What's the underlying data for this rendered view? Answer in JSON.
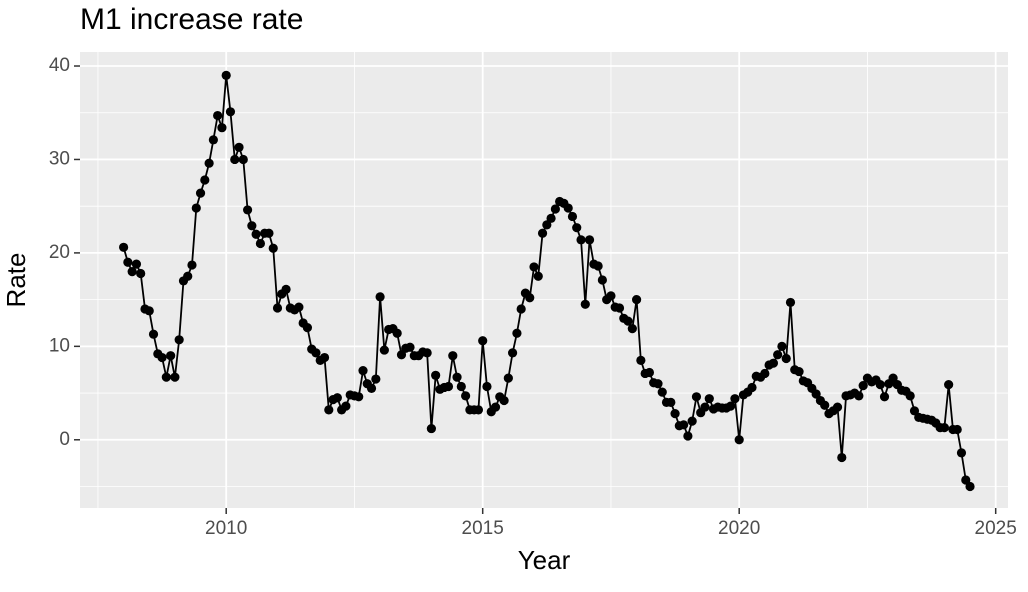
{
  "chart_data": {
    "type": "line",
    "title": "M1 increase rate",
    "x_label": "Year",
    "y_label": "Rate",
    "x": [
      2008,
      2008.083,
      2008.167,
      2008.25,
      2008.333,
      2008.417,
      2008.5,
      2008.583,
      2008.667,
      2008.75,
      2008.833,
      2008.917,
      2009,
      2009.083,
      2009.167,
      2009.25,
      2009.333,
      2009.417,
      2009.5,
      2009.583,
      2009.667,
      2009.75,
      2009.833,
      2009.917,
      2010,
      2010.083,
      2010.167,
      2010.25,
      2010.333,
      2010.417,
      2010.5,
      2010.583,
      2010.667,
      2010.75,
      2010.833,
      2010.917,
      2011,
      2011.083,
      2011.167,
      2011.25,
      2011.333,
      2011.417,
      2011.5,
      2011.583,
      2011.667,
      2011.75,
      2011.833,
      2011.917,
      2012,
      2012.083,
      2012.167,
      2012.25,
      2012.333,
      2012.417,
      2012.5,
      2012.583,
      2012.667,
      2012.75,
      2012.833,
      2012.917,
      2013,
      2013.083,
      2013.167,
      2013.25,
      2013.333,
      2013.417,
      2013.5,
      2013.583,
      2013.667,
      2013.75,
      2013.833,
      2013.917,
      2014,
      2014.083,
      2014.167,
      2014.25,
      2014.333,
      2014.417,
      2014.5,
      2014.583,
      2014.667,
      2014.75,
      2014.833,
      2014.917,
      2015,
      2015.083,
      2015.167,
      2015.25,
      2015.333,
      2015.417,
      2015.5,
      2015.583,
      2015.667,
      2015.75,
      2015.833,
      2015.917,
      2016,
      2016.083,
      2016.167,
      2016.25,
      2016.333,
      2016.417,
      2016.5,
      2016.583,
      2016.667,
      2016.75,
      2016.833,
      2016.917,
      2017,
      2017.083,
      2017.167,
      2017.25,
      2017.333,
      2017.417,
      2017.5,
      2017.583,
      2017.667,
      2017.75,
      2017.833,
      2017.917,
      2018,
      2018.083,
      2018.167,
      2018.25,
      2018.333,
      2018.417,
      2018.5,
      2018.583,
      2018.667,
      2018.75,
      2018.833,
      2018.917,
      2019,
      2019.083,
      2019.167,
      2019.25,
      2019.333,
      2019.417,
      2019.5,
      2019.583,
      2019.667,
      2019.75,
      2019.833,
      2019.917,
      2020,
      2020.083,
      2020.167,
      2020.25,
      2020.333,
      2020.417,
      2020.5,
      2020.583,
      2020.667,
      2020.75,
      2020.833,
      2020.917,
      2021,
      2021.083,
      2021.167,
      2021.25,
      2021.333,
      2021.417,
      2021.5,
      2021.583,
      2021.667,
      2021.75,
      2021.833,
      2021.917,
      2022,
      2022.083,
      2022.167,
      2022.25,
      2022.333,
      2022.417,
      2022.5,
      2022.583,
      2022.667,
      2022.75,
      2022.833,
      2022.917,
      2023,
      2023.083,
      2023.167,
      2023.25,
      2023.333,
      2023.417,
      2023.5,
      2023.583,
      2023.667,
      2023.75,
      2023.833,
      2023.917,
      2024,
      2024.083,
      2024.167,
      2024.25,
      2024.333,
      2024.417,
      2024.5
    ],
    "values": [
      20.6,
      19.0,
      18.0,
      18.8,
      17.8,
      14.0,
      13.8,
      11.3,
      9.2,
      8.8,
      6.7,
      9.0,
      6.7,
      10.7,
      17.0,
      17.5,
      18.7,
      24.8,
      26.4,
      27.8,
      29.6,
      32.1,
      34.7,
      33.4,
      39.0,
      35.1,
      30.0,
      31.3,
      30.0,
      24.6,
      22.9,
      22.0,
      21.0,
      22.1,
      22.1,
      20.5,
      14.1,
      15.6,
      16.1,
      14.1,
      13.9,
      14.2,
      12.5,
      12.0,
      9.7,
      9.3,
      8.5,
      8.8,
      3.2,
      4.3,
      4.5,
      3.2,
      3.6,
      4.8,
      4.7,
      4.6,
      7.4,
      6.0,
      5.5,
      6.5,
      15.3,
      9.6,
      11.8,
      11.9,
      11.4,
      9.1,
      9.8,
      9.9,
      9.0,
      9.0,
      9.4,
      9.3,
      1.2,
      6.9,
      5.4,
      5.6,
      5.7,
      9.0,
      6.7,
      5.7,
      4.7,
      3.2,
      3.2,
      3.2,
      10.6,
      5.7,
      3.0,
      3.5,
      4.6,
      4.2,
      6.6,
      9.3,
      11.4,
      14.0,
      15.7,
      15.2,
      18.5,
      17.5,
      22.1,
      23.0,
      23.7,
      24.7,
      25.5,
      25.3,
      24.8,
      23.9,
      22.7,
      21.4,
      14.5,
      21.4,
      18.8,
      18.6,
      17.1,
      15.0,
      15.4,
      14.2,
      14.1,
      13.0,
      12.7,
      11.9,
      15.0,
      8.5,
      7.1,
      7.2,
      6.1,
      6.0,
      5.1,
      4.0,
      4.0,
      2.8,
      1.5,
      1.6,
      0.4,
      2.0,
      4.6,
      2.9,
      3.5,
      4.4,
      3.3,
      3.5,
      3.4,
      3.4,
      3.6,
      4.4,
      0.0,
      4.8,
      5.1,
      5.6,
      6.8,
      6.7,
      7.1,
      8.0,
      8.2,
      9.1,
      10.0,
      8.7,
      14.7,
      7.5,
      7.3,
      6.3,
      6.1,
      5.5,
      4.9,
      4.2,
      3.7,
      2.8,
      3.1,
      3.5,
      -1.9,
      4.7,
      4.8,
      5.0,
      4.7,
      5.8,
      6.6,
      6.2,
      6.4,
      5.9,
      4.6,
      6.0,
      6.6,
      5.9,
      5.3,
      5.2,
      4.7,
      3.1,
      2.4,
      2.3,
      2.2,
      2.1,
      1.8,
      1.3,
      1.3,
      5.9,
      1.1,
      1.1,
      -1.4,
      -4.3,
      -5.0
    ],
    "color": "#000000",
    "xlim": [
      2007.15,
      2025.24
    ],
    "xticks": [
      2010,
      2015,
      2020,
      2025
    ],
    "ylim": [
      -7.3,
      41.5
    ],
    "yticks": [
      0,
      10,
      20,
      30,
      40
    ],
    "grid": true
  }
}
